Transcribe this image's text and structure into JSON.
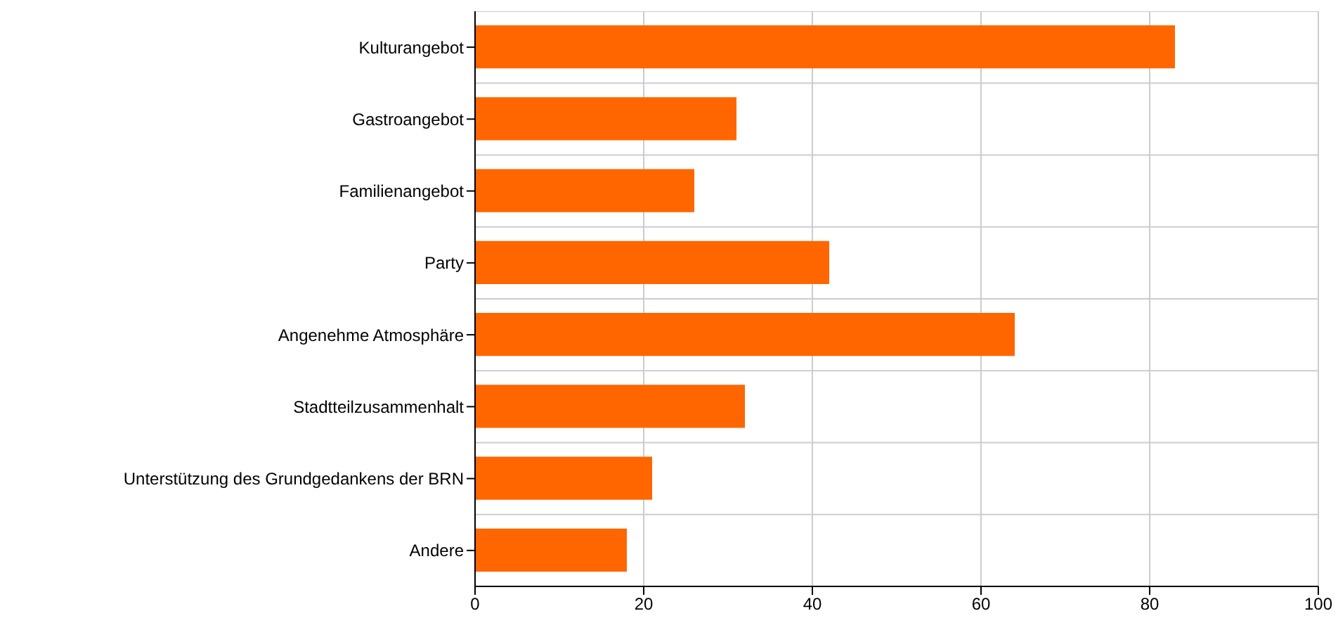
{
  "chart_data": {
    "type": "bar",
    "orientation": "horizontal",
    "categories": [
      "Kulturangebot",
      "Gastroangebot",
      "Familienangebot",
      "Party",
      "Angenehme Atmosphäre",
      "Stadtteilzusammenhalt",
      "Unterstützung des Grundgedankens der BRN",
      "Andere"
    ],
    "values": [
      83,
      31,
      26,
      42,
      64,
      32,
      21,
      18
    ],
    "color": "#ff6600",
    "xlim": [
      0,
      100
    ],
    "xticks": [
      0,
      20,
      40,
      60,
      80,
      100
    ],
    "grid": true
  }
}
